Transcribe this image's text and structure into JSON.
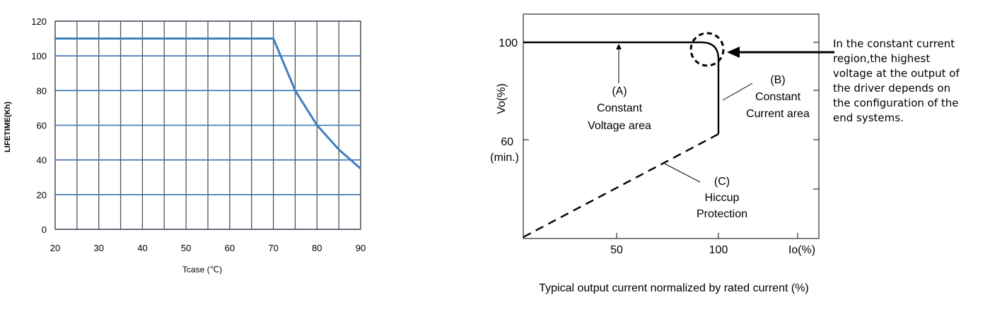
{
  "chart_data": [
    {
      "type": "line",
      "title": "",
      "xlabel": "Tcase (℃)",
      "ylabel": "LIFETIME(Kh)",
      "xlim": [
        20,
        90
      ],
      "ylim": [
        0,
        120
      ],
      "x_ticks": [
        "20",
        "30",
        "40",
        "50",
        "60",
        "70",
        "80",
        "90"
      ],
      "y_ticks": [
        "0",
        "20",
        "40",
        "60",
        "80",
        "100",
        "120"
      ],
      "grid": true,
      "series": [
        {
          "x": [
            20,
            70,
            75,
            80,
            85,
            90
          ],
          "y": [
            110,
            110,
            80,
            60,
            46,
            35
          ]
        }
      ],
      "colors": {
        "line": "#3f7fc0",
        "grid_h": "#3b6fb0",
        "grid_v": "#555555"
      }
    },
    {
      "type": "line",
      "title": "",
      "xlabel": "Typical output current normalized by rated current (%)",
      "ylabel": "Vo(%)",
      "x_ticks": [
        "50",
        "100",
        "Io(%)"
      ],
      "y_ticks": [
        "100",
        "60",
        "(min.)"
      ],
      "series": [
        {
          "name": "(A) Constant Voltage area",
          "style": "solid",
          "x": [
            0,
            91,
            98.5,
            100,
            100
          ],
          "y": [
            100,
            100,
            97,
            94,
            56
          ]
        },
        {
          "name": "(C) Hiccup Protection",
          "style": "dashed",
          "x": [
            0,
            100
          ],
          "y": [
            0,
            56
          ]
        }
      ],
      "annotations": {
        "a": [
          "(A)",
          "Constant",
          "Voltage area"
        ],
        "b": [
          "(B)",
          "Constant",
          "Current area"
        ],
        "c": [
          "(C)",
          "Hiccup",
          "Protection"
        ]
      }
    }
  ],
  "note": {
    "lines": [
      "In the constant current",
      "region,the highest",
      "voltage at the output of",
      "the driver depends on",
      "the configuration of the",
      "end systems."
    ]
  }
}
